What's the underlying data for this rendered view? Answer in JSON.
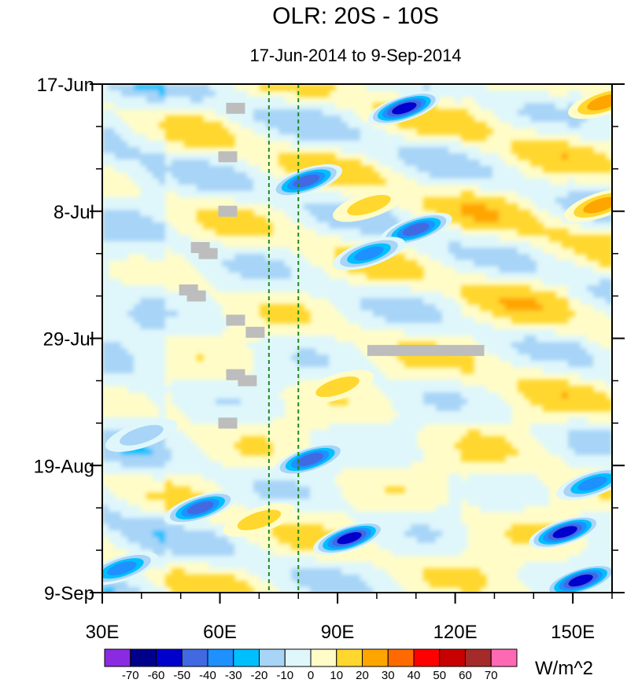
{
  "chart_data": {
    "type": "heatmap",
    "title": "OLR: 20S - 10S",
    "subtitle": "17-Jun-2014 to 9-Sep-2014",
    "x_axis": {
      "range": [
        30,
        160
      ],
      "ticks": [
        {
          "value": 30,
          "label": "30E"
        },
        {
          "value": 60,
          "label": "60E"
        },
        {
          "value": 90,
          "label": "90E"
        },
        {
          "value": 120,
          "label": "120E"
        },
        {
          "value": 150,
          "label": "150E"
        }
      ],
      "minor_step": 10
    },
    "y_axis": {
      "range_days": [
        0,
        84
      ],
      "ticks": [
        {
          "day": 0,
          "label": "17-Jun"
        },
        {
          "day": 21,
          "label": "8-Jul"
        },
        {
          "day": 42,
          "label": "29-Jul"
        },
        {
          "day": 63,
          "label": "19-Aug"
        },
        {
          "day": 84,
          "label": "9-Sep"
        }
      ],
      "minor_step_days": 7,
      "reversed": true
    },
    "reference_lines_lon": [
      72.5,
      80
    ],
    "units": "W/m^2",
    "colorbar": {
      "levels": [
        "-70",
        "-60",
        "-50",
        "-40",
        "-30",
        "-20",
        "-10",
        "0",
        "10",
        "20",
        "30",
        "40",
        "50",
        "60",
        "70"
      ],
      "colors": [
        "#8a2be2",
        "#00008b",
        "#0000cd",
        "#4169e1",
        "#1e90ff",
        "#00bfff",
        "#a7d4f7",
        "#dff7fb",
        "#fffcc8",
        "#ffd72e",
        "#ffa500",
        "#ff6a00",
        "#ff0000",
        "#c80000",
        "#a52a2a",
        "#ff69b4"
      ]
    },
    "anomaly_features": [
      {
        "lon": 107,
        "day": 4,
        "value": -60
      },
      {
        "lon": 82,
        "day": 16,
        "value": -50
      },
      {
        "lon": 110,
        "day": 24,
        "value": -45
      },
      {
        "lon": 98,
        "day": 28,
        "value": -35
      },
      {
        "lon": 83,
        "day": 62,
        "value": -45
      },
      {
        "lon": 93,
        "day": 75,
        "value": -55
      },
      {
        "lon": 148,
        "day": 74,
        "value": -60
      },
      {
        "lon": 152,
        "day": 82,
        "value": -55
      },
      {
        "lon": 155,
        "day": 66,
        "value": -40
      },
      {
        "lon": 55,
        "day": 70,
        "value": -50
      },
      {
        "lon": 35,
        "day": 80,
        "value": -35
      },
      {
        "lon": 40,
        "day": 58,
        "value": -20
      },
      {
        "lon": 98,
        "day": 20,
        "value": 15
      },
      {
        "lon": 90,
        "day": 50,
        "value": 15
      },
      {
        "lon": 70,
        "day": 72,
        "value": 15
      },
      {
        "lon": 158,
        "day": 3,
        "value": 25
      },
      {
        "lon": 157,
        "day": 20,
        "value": 25
      }
    ],
    "missing_data_cells": [
      {
        "lon": 64,
        "day": 4
      },
      {
        "lon": 62,
        "day": 12
      },
      {
        "lon": 62,
        "day": 21
      },
      {
        "lon": 55,
        "day": 27
      },
      {
        "lon": 57,
        "day": 28
      },
      {
        "lon": 52,
        "day": 34
      },
      {
        "lon": 54,
        "day": 35
      },
      {
        "lon": 64,
        "day": 39
      },
      {
        "lon": 69,
        "day": 41
      },
      {
        "lon": 64,
        "day": 48
      },
      {
        "lon": 67,
        "day": 49
      },
      {
        "lon": 62,
        "day": 56
      },
      {
        "lon": 100,
        "day": 44,
        "lon_end": 125
      }
    ]
  }
}
